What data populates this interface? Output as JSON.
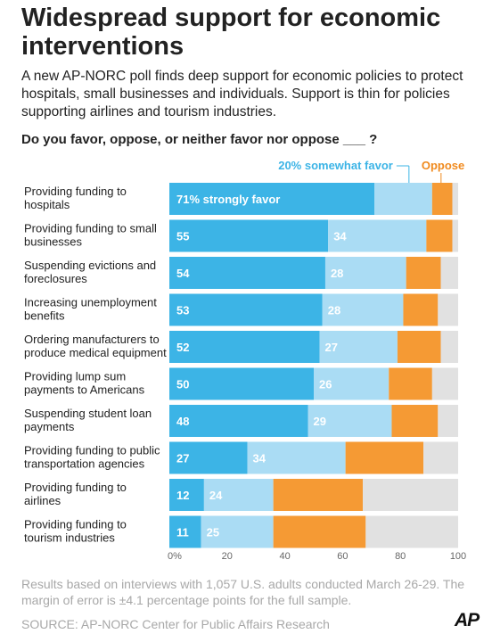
{
  "title": "Widespread support for economic interventions",
  "subtitle": "A new AP-NORC poll finds deep support for economic policies to protect hospitals, small businesses and individuals. Support is thin for policies supporting airlines and tourism industries.",
  "question": "Do you favor, oppose, or neither favor nor oppose ___ ?",
  "legend": {
    "somewhat_favor": "20% somewhat favor",
    "oppose": "Oppose"
  },
  "colors": {
    "strongly_favor": "#3cb4e6",
    "somewhat_favor": "#aadcf4",
    "oppose": "#f59a34",
    "neither": "#e1e1e1",
    "legend_favor_text": "#3cb4e6",
    "legend_oppose_text": "#f08a1e"
  },
  "chart_data": {
    "type": "bar",
    "orientation": "horizontal",
    "stacked": true,
    "categories": [
      [
        "Providing funding to",
        "hospitals"
      ],
      [
        "Providing funding to small",
        "businesses"
      ],
      [
        "Suspending evictions and",
        "foreclosures"
      ],
      [
        "Increasing unemployment",
        "benefits"
      ],
      [
        "Ordering manufacturers to",
        "produce medical equipment"
      ],
      [
        "Providing lump sum",
        "payments to Americans"
      ],
      [
        "Suspending student loan",
        "payments"
      ],
      [
        "Providing funding to public",
        "transportation agencies"
      ],
      [
        "Providing funding to",
        "airlines"
      ],
      [
        "Providing funding to",
        "tourism industries"
      ]
    ],
    "series": [
      {
        "key": "strongly_favor",
        "values": [
          71,
          55,
          54,
          53,
          52,
          50,
          48,
          27,
          12,
          11
        ]
      },
      {
        "key": "somewhat_favor",
        "values": [
          20,
          34,
          28,
          28,
          27,
          26,
          29,
          34,
          24,
          25
        ]
      },
      {
        "key": "oppose",
        "values": [
          7,
          9,
          12,
          12,
          15,
          15,
          16,
          27,
          31,
          32
        ]
      },
      {
        "key": "neither",
        "values": [
          2,
          2,
          6,
          7,
          6,
          9,
          7,
          12,
          33,
          32
        ]
      }
    ],
    "strongly_favor_first_label": "71% strongly favor",
    "x_ticks": [
      "0%",
      "20",
      "40",
      "60",
      "80",
      "100"
    ],
    "xlim": [
      0,
      100
    ],
    "grid": false
  },
  "note": "Results based on interviews with 1,057 U.S. adults conducted March 26-29. The margin of error is ±4.1 percentage points for the full sample.",
  "source": "SOURCE: AP-NORC Center for Public Affairs Research",
  "logo": "AP"
}
